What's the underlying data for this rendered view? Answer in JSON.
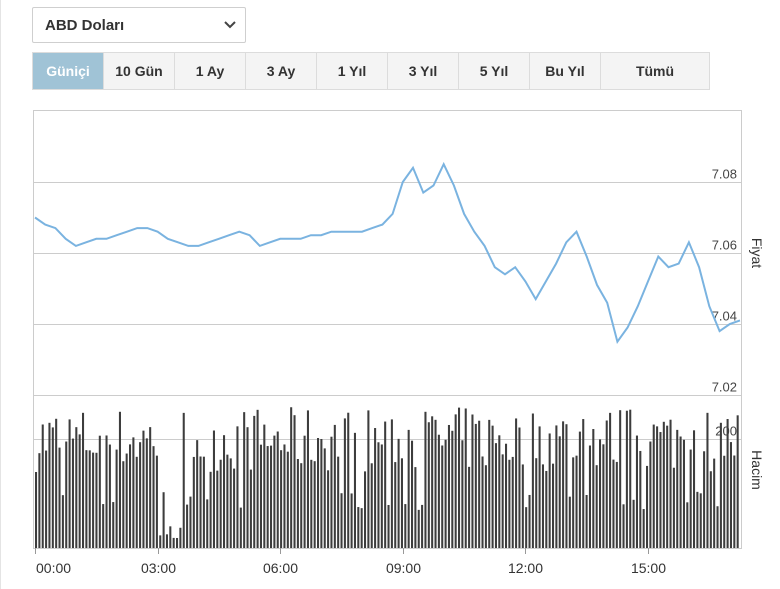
{
  "currency_select": {
    "value": "ABD Doları"
  },
  "range_tabs": [
    {
      "label": "Güniçi",
      "active": true
    },
    {
      "label": "10 Gün",
      "active": false
    },
    {
      "label": "1 Ay",
      "active": false
    },
    {
      "label": "3 Ay",
      "active": false
    },
    {
      "label": "1 Yıl",
      "active": false
    },
    {
      "label": "3 Yıl",
      "active": false
    },
    {
      "label": "5 Yıl",
      "active": false
    },
    {
      "label": "Bu Yıl",
      "active": false
    },
    {
      "label": "Tümü",
      "active": false
    }
  ],
  "colors": {
    "price_line": "#7ab3e0",
    "volume_bar": "#3d3d3d",
    "active_tab": "#a0c3d6",
    "grid": "#cccccc"
  },
  "chart_data": {
    "type": "line",
    "x_ticks": [
      "00:00",
      "03:00",
      "06:00",
      "09:00",
      "12:00",
      "15:00"
    ],
    "x_tick_hours": [
      0,
      3,
      6,
      9,
      12,
      15
    ],
    "x_range_hours": [
      0,
      17.25
    ],
    "price": {
      "ylabel": "Fiyat",
      "y_ticks": [
        7.02,
        7.04,
        7.06,
        7.08
      ],
      "ylim": [
        7.02,
        7.1
      ],
      "x_hours": [
        0,
        0.25,
        0.5,
        0.75,
        1,
        1.25,
        1.5,
        1.75,
        2,
        2.25,
        2.5,
        2.75,
        3,
        3.25,
        3.5,
        3.75,
        4,
        4.25,
        4.5,
        4.75,
        5,
        5.25,
        5.5,
        5.75,
        6,
        6.25,
        6.5,
        6.75,
        7,
        7.25,
        7.5,
        7.75,
        8,
        8.25,
        8.5,
        8.75,
        9,
        9.25,
        9.5,
        9.75,
        10,
        10.25,
        10.5,
        10.75,
        11,
        11.25,
        11.5,
        11.75,
        12,
        12.25,
        12.5,
        12.75,
        13,
        13.25,
        13.5,
        13.75,
        14,
        14.25,
        14.5,
        14.75,
        15,
        15.25,
        15.5,
        15.75,
        16,
        16.25,
        16.5,
        16.75,
        17,
        17.25
      ],
      "values": [
        7.07,
        7.068,
        7.067,
        7.064,
        7.062,
        7.063,
        7.064,
        7.064,
        7.065,
        7.066,
        7.067,
        7.067,
        7.066,
        7.064,
        7.063,
        7.062,
        7.062,
        7.063,
        7.064,
        7.065,
        7.066,
        7.065,
        7.062,
        7.063,
        7.064,
        7.064,
        7.064,
        7.065,
        7.065,
        7.066,
        7.066,
        7.066,
        7.066,
        7.067,
        7.068,
        7.071,
        7.08,
        7.084,
        7.077,
        7.079,
        7.085,
        7.079,
        7.071,
        7.066,
        7.062,
        7.056,
        7.054,
        7.056,
        7.052,
        7.047,
        7.052,
        7.057,
        7.063,
        7.066,
        7.059,
        7.051,
        7.046,
        7.035,
        7.039,
        7.045,
        7.052,
        7.059,
        7.056,
        7.057,
        7.063,
        7.056,
        7.045,
        7.038,
        7.04,
        7.041
      ]
    },
    "volume": {
      "ylabel": "Hacim",
      "y_ticks": [
        200
      ],
      "ylim": [
        0,
        280
      ]
    }
  }
}
